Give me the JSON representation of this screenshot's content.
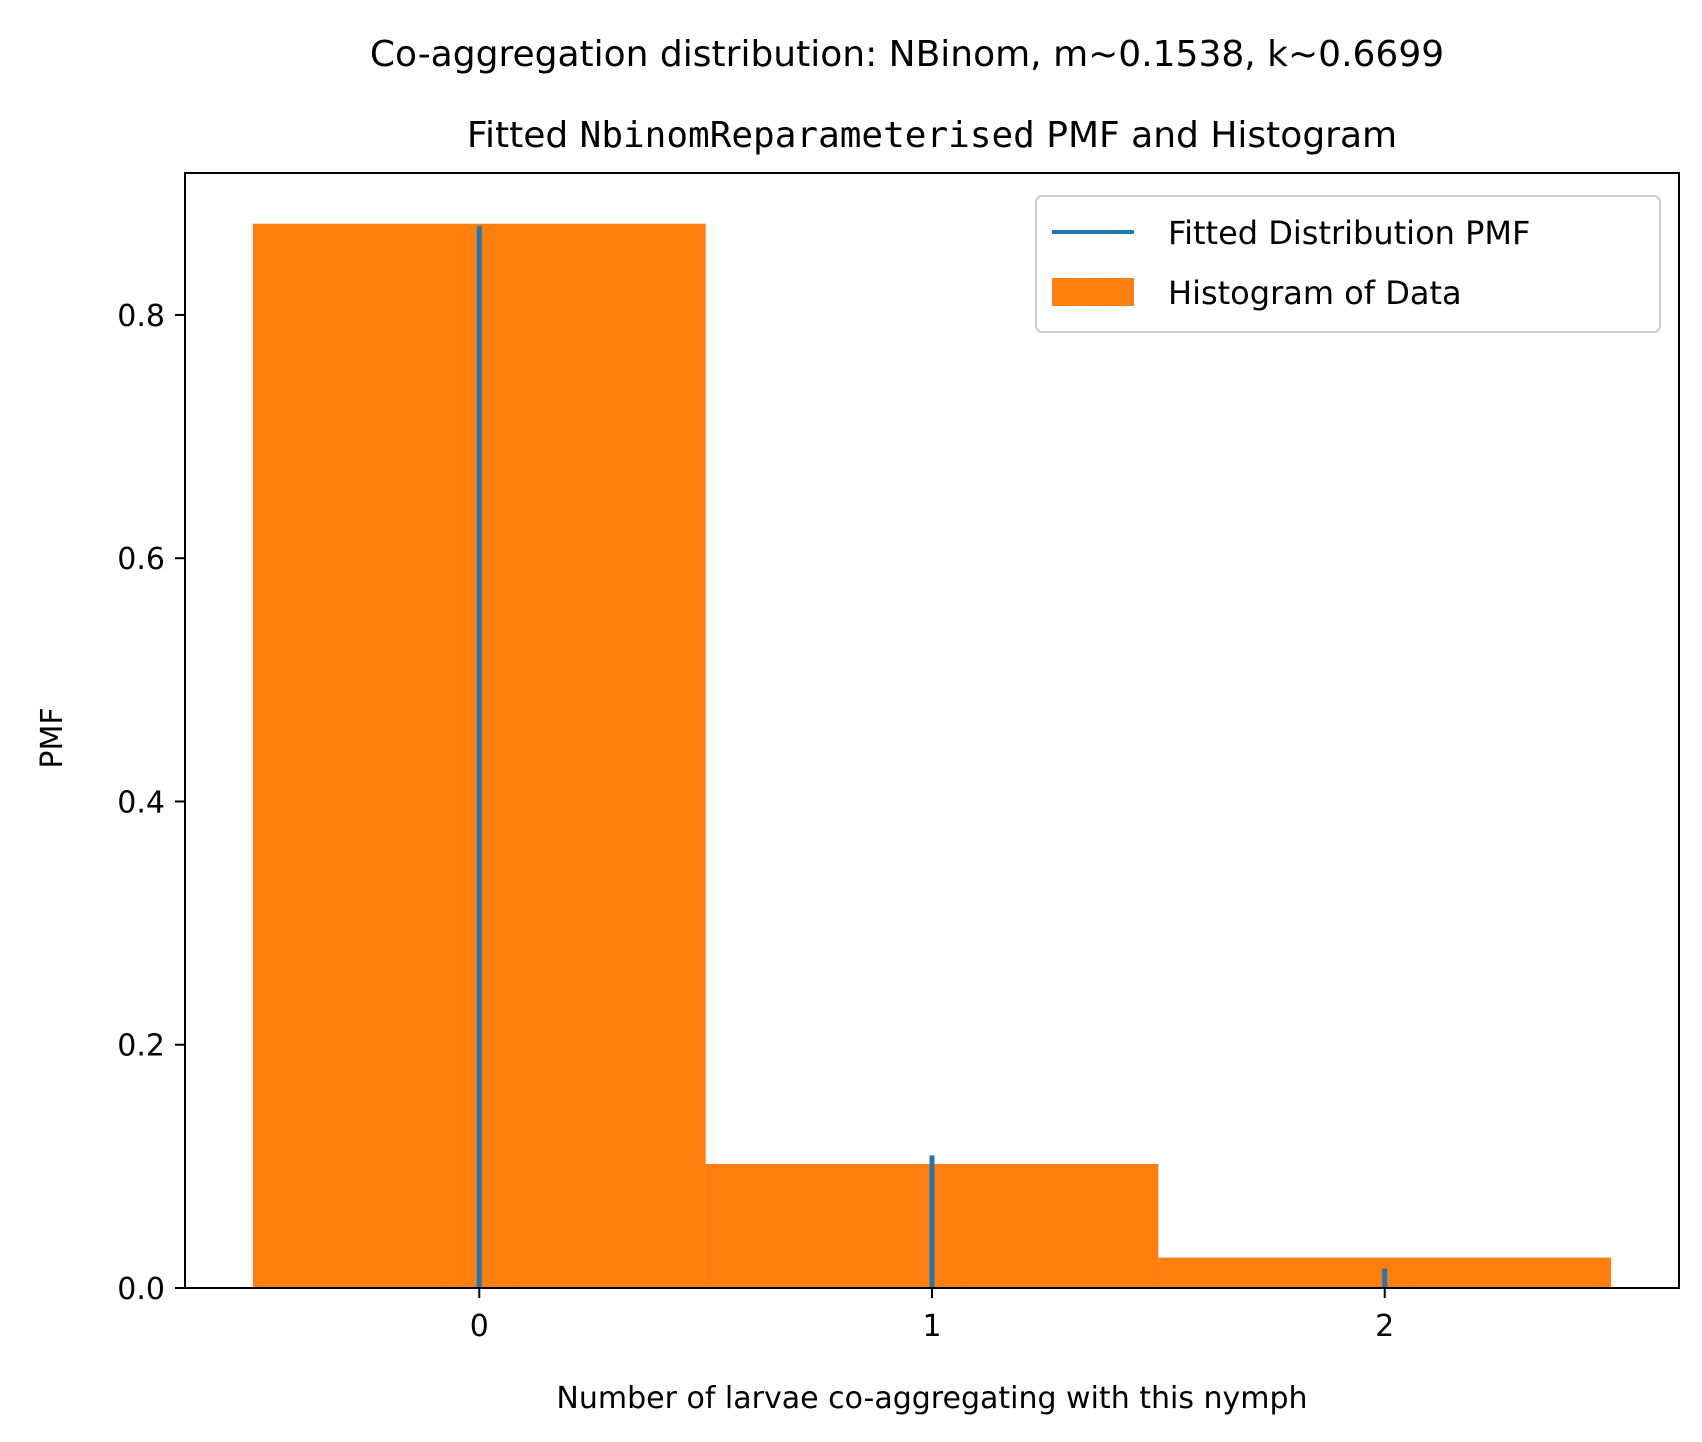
{
  "chart_data": {
    "type": "bar",
    "suptitle": "Co-aggregation distribution: NBinom, m~0.1538, k~0.6699",
    "title_parts": [
      {
        "text": "Fitted ",
        "mono": false
      },
      {
        "text": "NbinomReparameterised",
        "mono": true
      },
      {
        "text": " PMF and Histogram",
        "mono": false
      }
    ],
    "xlabel": "Number of larvae co-aggregating with this nymph",
    "ylabel": "PMF",
    "xlim": [
      -0.65,
      2.65
    ],
    "ylim": [
      0,
      0.9167
    ],
    "xticks": [
      0,
      1,
      2
    ],
    "xtick_labels": [
      "0",
      "1",
      "2"
    ],
    "yticks": [
      0.0,
      0.2,
      0.4,
      0.6,
      0.8
    ],
    "ytick_labels": [
      "0.0",
      "0.2",
      "0.4",
      "0.6",
      "0.8"
    ],
    "grid": false,
    "legend_position": "top-right",
    "series": [
      {
        "name": "Fitted Distribution PMF",
        "kind": "vlines",
        "x": [
          0,
          1,
          2
        ],
        "values": [
          0.873,
          0.109,
          0.016
        ],
        "color": "#1f77b4"
      },
      {
        "name": "Histogram of Data",
        "kind": "histogram",
        "bins": [
          [
            -0.5,
            0.5
          ],
          [
            0.5,
            1.5
          ],
          [
            1.5,
            2.5
          ]
        ],
        "values": [
          0.875,
          0.102,
          0.025
        ],
        "color": "#ff7f0e"
      }
    ]
  }
}
